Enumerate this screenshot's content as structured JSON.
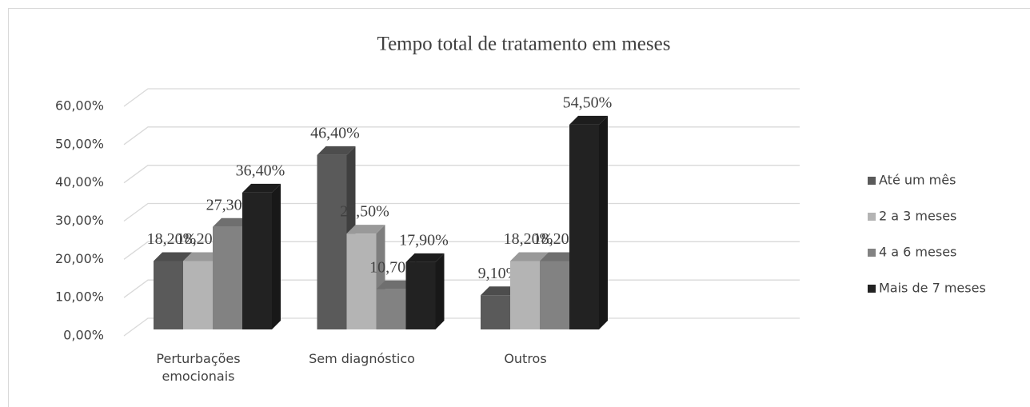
{
  "chart_data": {
    "type": "bar",
    "title": "Tempo total de tratamento em meses",
    "categories": [
      "Perturbações emocionais",
      "Sem diagnóstico",
      "Outros"
    ],
    "series": [
      {
        "name": "Até um mês",
        "color": "#5a5a5a",
        "values": [
          18.2,
          46.4,
          9.1
        ],
        "value_labels": [
          "18,20%",
          "46,40%",
          "9,10%"
        ]
      },
      {
        "name": "2 a 3 meses",
        "color": "#b4b4b4",
        "values": [
          18.2,
          25.5,
          18.2
        ],
        "value_labels": [
          "18,20%",
          "25,50%",
          "18,20%"
        ]
      },
      {
        "name": "4 a 6 meses",
        "color": "#828282",
        "values": [
          27.3,
          10.7,
          18.2
        ],
        "value_labels": [
          "27,30%",
          "10,70%",
          "18,20%"
        ]
      },
      {
        "name": "Mais de 7 meses",
        "color": "#222222",
        "values": [
          36.4,
          17.9,
          54.5
        ],
        "value_labels": [
          "36,40%",
          "17,90%",
          "54,50%"
        ]
      }
    ],
    "ylim": [
      0,
      60
    ],
    "yticks": [
      {
        "value": 0,
        "label": "0,00%"
      },
      {
        "value": 10,
        "label": "10,00%"
      },
      {
        "value": 20,
        "label": "20,00%"
      },
      {
        "value": 30,
        "label": "30,00%"
      },
      {
        "value": 40,
        "label": "40,00%"
      },
      {
        "value": 50,
        "label": "50,00%"
      },
      {
        "value": 60,
        "label": "60,00%"
      }
    ],
    "grid": true,
    "legend": "right"
  }
}
